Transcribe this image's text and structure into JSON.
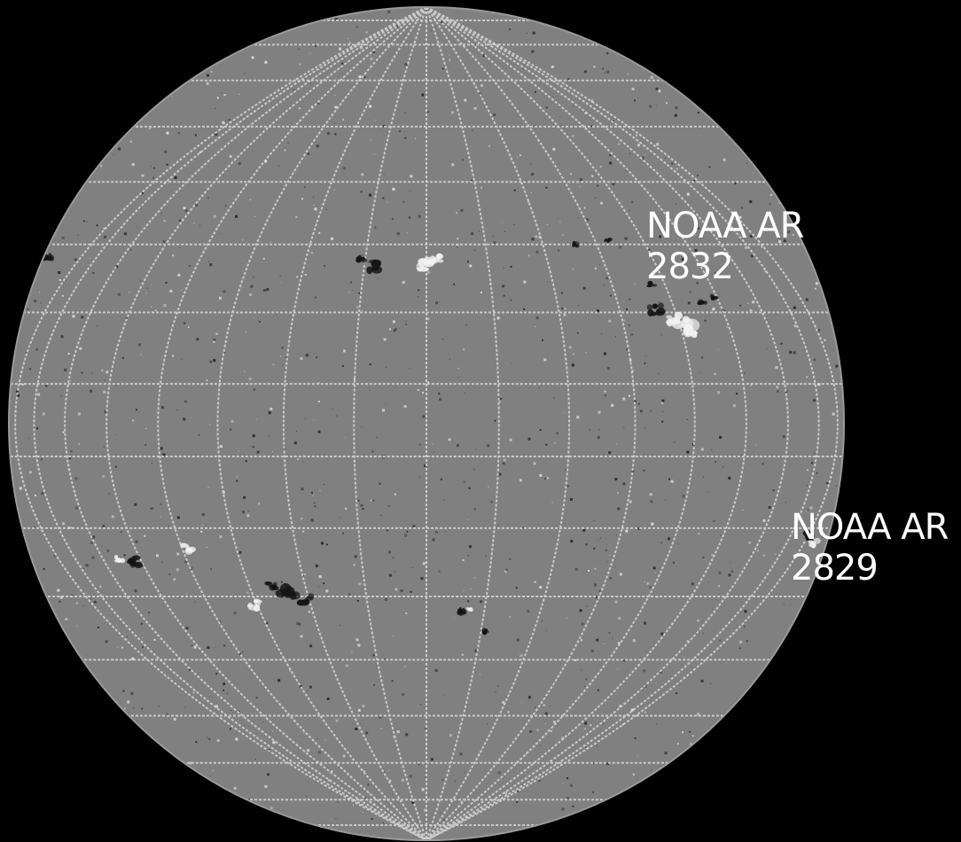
{
  "image": {
    "background_color": "#000000",
    "disk_color": "#808080",
    "grid_color": "#d8d8d8",
    "positive_polarity_color": "#f2f2f2",
    "negative_polarity_color": "#141414"
  },
  "annotations": [
    {
      "id": "ar-2832",
      "line1": "NOAA AR",
      "line2": "2832"
    },
    {
      "id": "ar-2829",
      "line1": "NOAA AR",
      "line2": "2829"
    }
  ]
}
